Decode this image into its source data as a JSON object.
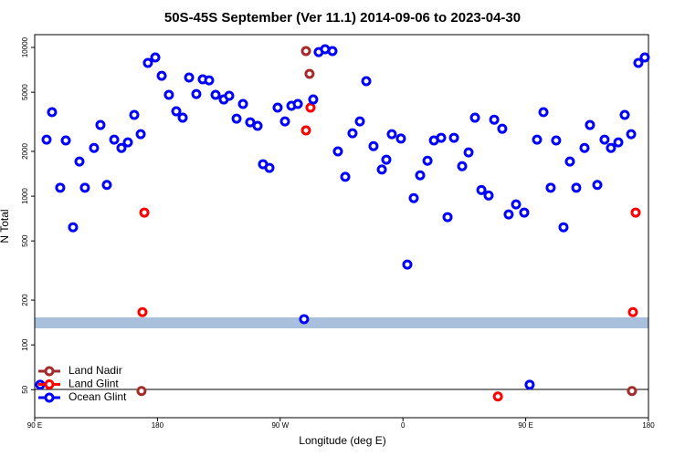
{
  "chart_data": {
    "type": "scatter",
    "title": "50S-45S September (Ver 11.1)   2014-09-06 to 2023-04-30",
    "x_label": "Longitude (deg E)",
    "y_label": "N Total",
    "xlim": [
      90,
      540
    ],
    "xticks": [
      {
        "value": 90,
        "label": "90 E"
      },
      180,
      {
        "value": 270,
        "label": "90 W"
      },
      {
        "value": 360,
        "label": "0"
      },
      {
        "value": 450,
        "label": "90 E"
      },
      {
        "value": 540,
        "label": "180"
      }
    ],
    "ylim": [
      32.4,
      12190
    ],
    "yticks": [
      50,
      100,
      200,
      500,
      1000,
      2000,
      5000,
      10000
    ],
    "ylog": true,
    "legend": "bottom left",
    "series": [
      {
        "name": "Land Nadir",
        "color": "#a52a2a",
        "x": [
          288.9,
          291.5,
          168.3,
          527.9
        ],
        "values": [
          9450,
          6640,
          49,
          49
        ]
      },
      {
        "name": "Land Glint",
        "color": "#ff0000",
        "x": [
          170.4,
          169.0,
          288.9,
          292.2,
          429.6,
          530.6,
          528.6
        ],
        "values": [
          776,
          166,
          2770,
          3940,
          45,
          776,
          166
        ]
      },
      {
        "name": "Ocean Glint",
        "color": "#0000ff",
        "x": [
          94.0,
          98.7,
          102.7,
          108.7,
          112.8,
          118.1,
          122.8,
          126.8,
          133.5,
          138.2,
          142.9,
          148.3,
          153.6,
          158.3,
          163.0,
          167.7,
          173.0,
          178.4,
          183.1,
          188.4,
          193.8,
          198.5,
          203.2,
          208.5,
          213.2,
          217.9,
          222.6,
          228.6,
          232.6,
          238.0,
          242.7,
          248.0,
          253.4,
          257.4,
          262.1,
          268.1,
          273.5,
          278.2,
          282.9,
          287.5,
          294.2,
          298.2,
          302.9,
          308.3,
          312.3,
          317.7,
          323.0,
          328.4,
          333.1,
          338.4,
          344.5,
          347.8,
          351.8,
          358.5,
          363.2,
          367.9,
          372.6,
          378.0,
          382.7,
          388.0,
          392.7,
          397.4,
          403.4,
          408.1,
          412.8,
          417.5,
          422.8,
          426.9,
          432.8,
          437.5,
          442.9,
          448.9,
          452.9,
          458.3,
          463.0,
          468.3,
          472.3,
          477.7,
          482.4,
          487.1,
          493.1,
          497.1,
          502.5,
          507.8,
          512.5,
          517.9,
          522.6,
          527.3,
          532.6,
          537.3
        ],
        "values": [
          54,
          2400,
          3670,
          1140,
          2370,
          618,
          1710,
          1140,
          2110,
          3010,
          1190,
          2400,
          2110,
          2300,
          3520,
          2610,
          7870,
          8560,
          6450,
          4800,
          3720,
          3370,
          6280,
          4860,
          6100,
          6010,
          4800,
          4470,
          4730,
          3320,
          4170,
          3140,
          2970,
          1640,
          1550,
          3940,
          3180,
          4050,
          4170,
          149,
          4470,
          9310,
          9720,
          9450,
          2000,
          1350,
          2650,
          3180,
          5930,
          2170,
          1510,
          1760,
          2610,
          2440,
          347,
          970,
          1380,
          1730,
          2370,
          2470,
          723,
          2470,
          1590,
          1970,
          3370,
          1100,
          1010,
          3270,
          2840,
          754,
          880,
          776,
          54,
          2400,
          3670,
          1140,
          2370,
          618,
          1710,
          1140,
          2110,
          3010,
          1190,
          2400,
          2110,
          2300,
          3520,
          2610,
          7870,
          8560
        ]
      }
    ]
  }
}
